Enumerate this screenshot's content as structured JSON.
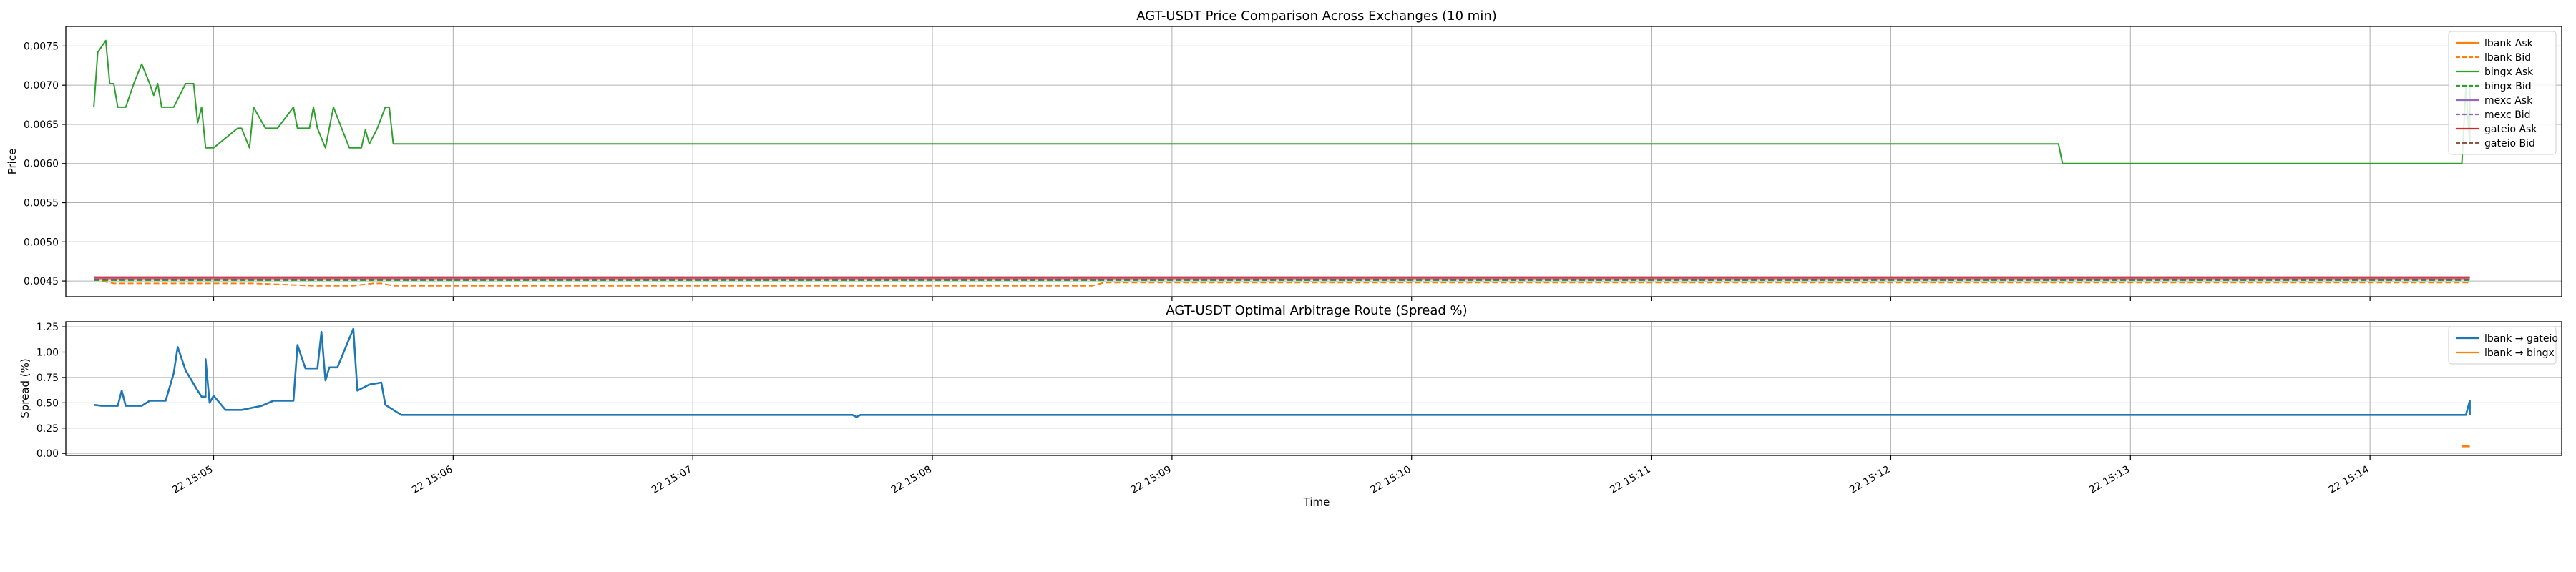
{
  "chart_data": [
    {
      "type": "line",
      "title": "AGT-USDT Price Comparison Across Exchanges (10 min)",
      "xlabel": "",
      "ylabel": "Price",
      "ylim": [
        0.0043,
        0.00775
      ],
      "xlim": [
        "15:04:23",
        "15:14:48"
      ],
      "y_ticks": [
        "0.0045",
        "0.0050",
        "0.0055",
        "0.0060",
        "0.0065",
        "0.0070",
        "0.0075"
      ],
      "grid": true,
      "legend_position": "top-right",
      "series": [
        {
          "name": "lbank Ask",
          "color": "#ff7f0e",
          "dash": "solid",
          "x": [
            "15:04:30",
            "15:14:25"
          ],
          "y": [
            0.00453,
            0.00453
          ]
        },
        {
          "name": "lbank Bid",
          "color": "#ff7f0e",
          "dash": "dashed",
          "x": [
            "15:04:30",
            "15:04:35",
            "15:05:10",
            "15:05:25",
            "15:05:35",
            "15:05:40",
            "15:05:42",
            "15:05:45",
            "15:08:40",
            "15:08:43",
            "15:14:25"
          ],
          "y": [
            0.00452,
            0.00447,
            0.00447,
            0.00444,
            0.00444,
            0.00447,
            0.00447,
            0.00444,
            0.00444,
            0.00448,
            0.00448
          ]
        },
        {
          "name": "bingx Ask",
          "color": "#2ca02c",
          "dash": "solid",
          "x": [
            "15:04:30",
            "15:04:31",
            "15:04:33",
            "15:04:34",
            "15:04:35",
            "15:04:36",
            "15:04:38",
            "15:04:40",
            "15:04:42",
            "15:04:44",
            "15:04:45",
            "15:04:46",
            "15:04:47",
            "15:04:48",
            "15:04:50",
            "15:04:53",
            "15:04:55",
            "15:04:56",
            "15:04:57",
            "15:04:58",
            "15:04:59",
            "15:05:00",
            "15:05:06",
            "15:05:07",
            "15:05:09",
            "15:05:10",
            "15:05:13",
            "15:05:16",
            "15:05:20",
            "15:05:21",
            "15:05:24",
            "15:05:25",
            "15:05:26",
            "15:05:28",
            "15:05:30",
            "15:05:34",
            "15:05:35",
            "15:05:37",
            "15:05:38",
            "15:05:39",
            "15:05:41",
            "15:05:43",
            "15:05:44",
            "15:05:45",
            "15:12:42",
            "15:12:43",
            "15:14:23",
            "15:14:24",
            "15:14:25",
            "15:14:25"
          ],
          "y": [
            0.00672,
            0.00742,
            0.00757,
            0.00702,
            0.00702,
            0.00672,
            0.00672,
            0.00702,
            0.00727,
            0.00702,
            0.00687,
            0.00702,
            0.00672,
            0.00672,
            0.00672,
            0.00702,
            0.00702,
            0.00652,
            0.00672,
            0.0062,
            0.0062,
            0.0062,
            0.00645,
            0.00645,
            0.0062,
            0.00672,
            0.00645,
            0.00645,
            0.00672,
            0.00645,
            0.00645,
            0.00672,
            0.00645,
            0.0062,
            0.00672,
            0.0062,
            0.0062,
            0.0062,
            0.00643,
            0.00625,
            0.00645,
            0.00672,
            0.00672,
            0.00625,
            0.00625,
            0.006,
            0.006,
            0.00697,
            0.00625,
            0.00698
          ]
        },
        {
          "name": "bingx Bid",
          "color": "#2ca02c",
          "dash": "dashed",
          "x": [
            "15:04:30",
            "15:14:25"
          ],
          "y": [
            0.00451,
            0.00451
          ]
        },
        {
          "name": "mexc Ask",
          "color": "#9467bd",
          "dash": "solid",
          "x": [
            "15:04:30",
            "15:14:25"
          ],
          "y": [
            0.00454,
            0.00454
          ]
        },
        {
          "name": "mexc Bid",
          "color": "#9467bd",
          "dash": "dashed",
          "x": [
            "15:04:30",
            "15:14:25"
          ],
          "y": [
            0.00452,
            0.00452
          ]
        },
        {
          "name": "gateio Ask",
          "color": "#d62728",
          "dash": "solid",
          "x": [
            "15:04:30",
            "15:14:25"
          ],
          "y": [
            0.00455,
            0.00455
          ]
        },
        {
          "name": "gateio Bid",
          "color": "#8c564b",
          "dash": "dashed",
          "x": [
            "15:04:30",
            "15:14:25"
          ],
          "y": [
            0.00452,
            0.00452
          ]
        }
      ]
    },
    {
      "type": "line",
      "title": "AGT-USDT Optimal Arbitrage Route (Spread %)",
      "xlabel": "Time",
      "ylabel": "Spread (%)",
      "ylim": [
        -0.02,
        1.3
      ],
      "xlim": [
        "15:04:23",
        "15:14:48"
      ],
      "y_ticks": [
        "0.00",
        "0.25",
        "0.50",
        "0.75",
        "1.00",
        "1.25"
      ],
      "x_ticks": [
        "22 15:05",
        "22 15:06",
        "22 15:07",
        "22 15:08",
        "22 15:09",
        "22 15:10",
        "22 15:11",
        "22 15:12",
        "22 15:13",
        "22 15:14"
      ],
      "grid": true,
      "legend_position": "top-right",
      "series": [
        {
          "name": "lbank → gateio",
          "color": "#1f77b4",
          "dash": "solid",
          "x": [
            "15:04:30",
            "15:04:32",
            "15:04:36",
            "15:04:37",
            "15:04:38",
            "15:04:42",
            "15:04:44",
            "15:04:48",
            "15:04:50",
            "15:04:51",
            "15:04:53",
            "15:04:56",
            "15:04:57",
            "15:04:58",
            "15:04:58",
            "15:04:59",
            "15:05:00",
            "15:05:03",
            "15:05:07",
            "15:05:12",
            "15:05:15",
            "15:05:20",
            "15:05:21",
            "15:05:23",
            "15:05:26",
            "15:05:27",
            "15:05:28",
            "15:05:29",
            "15:05:31",
            "15:05:35",
            "15:05:36",
            "15:05:39",
            "15:05:42",
            "15:05:43",
            "15:05:47",
            "15:05:48",
            "15:05:48",
            "15:07:40",
            "15:07:41",
            "15:07:42",
            "15:14:24",
            "15:14:25",
            "15:14:25"
          ],
          "y": [
            0.48,
            0.47,
            0.47,
            0.62,
            0.47,
            0.47,
            0.52,
            0.52,
            0.79,
            1.05,
            0.82,
            0.62,
            0.56,
            0.56,
            0.93,
            0.5,
            0.57,
            0.43,
            0.43,
            0.47,
            0.52,
            0.52,
            1.07,
            0.84,
            0.84,
            1.2,
            0.72,
            0.85,
            0.85,
            1.23,
            0.62,
            0.68,
            0.7,
            0.48,
            0.38,
            0.38,
            0.38,
            0.38,
            0.36,
            0.38,
            0.38,
            0.52,
            0.38
          ]
        },
        {
          "name": "lbank → bingx",
          "color": "#ff7f0e",
          "dash": "solid",
          "x": [
            "15:14:23",
            "15:14:25"
          ],
          "y": [
            0.07,
            0.07
          ]
        }
      ]
    }
  ]
}
